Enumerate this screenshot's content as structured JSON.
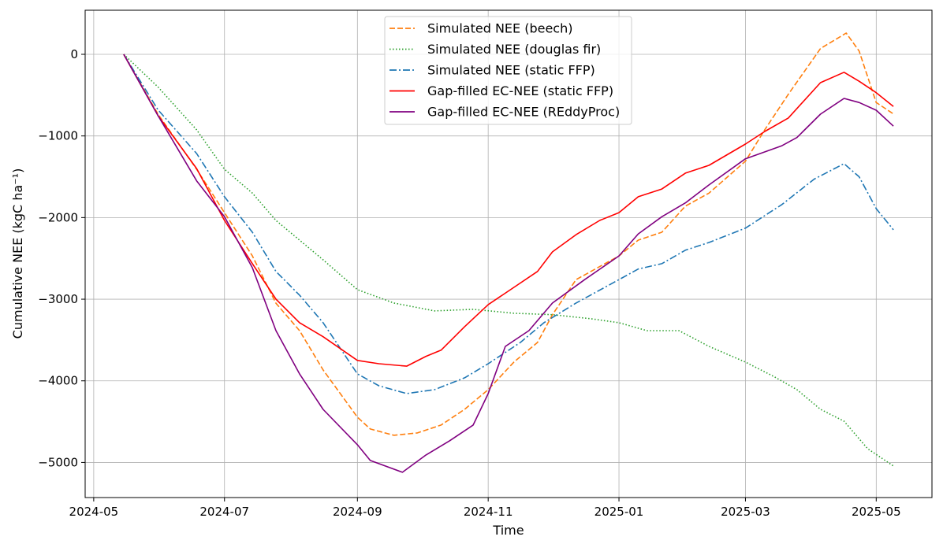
{
  "chart_data": {
    "type": "line",
    "title": "",
    "xlabel": "Time",
    "ylabel": "Cumulative NEE (kgC ha⁻¹)",
    "xlim": [
      "2024-04-27",
      "2025-05-27"
    ],
    "ylim": [
      -5430,
      540
    ],
    "grid": true,
    "legend_position": "top-center",
    "x_ticks": [
      "2024-05",
      "2024-07",
      "2024-09",
      "2024-11",
      "2025-01",
      "2025-03",
      "2025-05"
    ],
    "y_ticks": [
      0,
      -1000,
      -2000,
      -3000,
      -4000,
      -5000
    ],
    "y_tick_labels": [
      "0",
      "−1000",
      "−2000",
      "−3000",
      "−4000",
      "−5000"
    ],
    "series": [
      {
        "name": "Simulated NEE (beech)",
        "color": "#ff7f0e",
        "style": "dashed",
        "points": [
          [
            "2024-05-15",
            0
          ],
          [
            "2024-05-31",
            -733
          ],
          [
            "2024-06-18",
            -1408
          ],
          [
            "2024-07-01",
            -1940
          ],
          [
            "2024-07-14",
            -2470
          ],
          [
            "2024-07-25",
            -3050
          ],
          [
            "2024-08-05",
            -3385
          ],
          [
            "2024-08-16",
            -3867
          ],
          [
            "2024-09-01",
            -4445
          ],
          [
            "2024-09-07",
            -4590
          ],
          [
            "2024-09-18",
            -4667
          ],
          [
            "2024-09-29",
            -4638
          ],
          [
            "2024-10-10",
            -4542
          ],
          [
            "2024-10-21",
            -4349
          ],
          [
            "2024-11-01",
            -4108
          ],
          [
            "2024-11-13",
            -3770
          ],
          [
            "2024-11-24",
            -3530
          ],
          [
            "2024-12-01",
            -3190
          ],
          [
            "2024-12-12",
            -2760
          ],
          [
            "2025-01-01",
            -2470
          ],
          [
            "2025-01-10",
            -2276
          ],
          [
            "2025-01-21",
            -2180
          ],
          [
            "2025-02-01",
            -1860
          ],
          [
            "2025-02-12",
            -1700
          ],
          [
            "2025-03-01",
            -1310
          ],
          [
            "2025-03-10",
            -925
          ],
          [
            "2025-03-21",
            -490
          ],
          [
            "2025-04-05",
            70
          ],
          [
            "2025-04-17",
            260
          ],
          [
            "2025-04-23",
            40
          ],
          [
            "2025-05-01",
            -590
          ],
          [
            "2025-05-09",
            -730
          ]
        ]
      },
      {
        "name": "Simulated NEE (douglas fir)",
        "color": "#2ca02c",
        "style": "dotted",
        "points": [
          [
            "2024-05-15",
            0
          ],
          [
            "2024-05-31",
            -400
          ],
          [
            "2024-06-18",
            -925
          ],
          [
            "2024-07-01",
            -1408
          ],
          [
            "2024-07-14",
            -1700
          ],
          [
            "2024-07-25",
            -2035
          ],
          [
            "2024-08-05",
            -2276
          ],
          [
            "2024-08-16",
            -2517
          ],
          [
            "2024-09-01",
            -2883
          ],
          [
            "2024-09-18",
            -3047
          ],
          [
            "2024-10-07",
            -3143
          ],
          [
            "2024-10-25",
            -3124
          ],
          [
            "2024-11-13",
            -3172
          ],
          [
            "2024-12-01",
            -3190
          ],
          [
            "2024-12-19",
            -3240
          ],
          [
            "2025-01-01",
            -3288
          ],
          [
            "2025-01-14",
            -3385
          ],
          [
            "2025-01-29",
            -3385
          ],
          [
            "2025-02-12",
            -3578
          ],
          [
            "2025-03-01",
            -3770
          ],
          [
            "2025-03-14",
            -3944
          ],
          [
            "2025-03-25",
            -4108
          ],
          [
            "2025-04-05",
            -4349
          ],
          [
            "2025-04-16",
            -4494
          ],
          [
            "2025-04-27",
            -4831
          ],
          [
            "2025-05-09",
            -5043
          ]
        ]
      },
      {
        "name": "Simulated NEE (static FFP)",
        "color": "#1f77b4",
        "style": "dashdot",
        "points": [
          [
            "2024-05-15",
            0
          ],
          [
            "2024-05-31",
            -680
          ],
          [
            "2024-06-18",
            -1215
          ],
          [
            "2024-07-01",
            -1745
          ],
          [
            "2024-07-14",
            -2180
          ],
          [
            "2024-07-25",
            -2660
          ],
          [
            "2024-08-05",
            -2950
          ],
          [
            "2024-08-16",
            -3288
          ],
          [
            "2024-09-01",
            -3915
          ],
          [
            "2024-09-11",
            -4060
          ],
          [
            "2024-09-24",
            -4156
          ],
          [
            "2024-10-07",
            -4108
          ],
          [
            "2024-10-21",
            -3963
          ],
          [
            "2024-11-01",
            -3790
          ],
          [
            "2024-11-16",
            -3530
          ],
          [
            "2024-11-27",
            -3288
          ],
          [
            "2024-12-12",
            -3047
          ],
          [
            "2025-01-01",
            -2760
          ],
          [
            "2025-01-10",
            -2630
          ],
          [
            "2025-01-21",
            -2565
          ],
          [
            "2025-02-01",
            -2400
          ],
          [
            "2025-02-12",
            -2305
          ],
          [
            "2025-03-01",
            -2130
          ],
          [
            "2025-03-18",
            -1840
          ],
          [
            "2025-04-02",
            -1530
          ],
          [
            "2025-04-16",
            -1340
          ],
          [
            "2025-04-23",
            -1500
          ],
          [
            "2025-05-01",
            -1890
          ],
          [
            "2025-05-09",
            -2150
          ]
        ]
      },
      {
        "name": "Gap-filled EC-NEE (static FFP)",
        "color": "#ff0000",
        "style": "solid",
        "points": [
          [
            "2024-05-15",
            0
          ],
          [
            "2024-05-31",
            -750
          ],
          [
            "2024-06-18",
            -1400
          ],
          [
            "2024-07-01",
            -2035
          ],
          [
            "2024-07-14",
            -2565
          ],
          [
            "2024-07-25",
            -3000
          ],
          [
            "2024-08-05",
            -3288
          ],
          [
            "2024-08-16",
            -3460
          ],
          [
            "2024-09-01",
            -3750
          ],
          [
            "2024-09-11",
            -3790
          ],
          [
            "2024-09-24",
            -3820
          ],
          [
            "2024-10-03",
            -3700
          ],
          [
            "2024-10-10",
            -3625
          ],
          [
            "2024-10-21",
            -3336
          ],
          [
            "2024-11-01",
            -3066
          ],
          [
            "2024-11-13",
            -2855
          ],
          [
            "2024-11-24",
            -2660
          ],
          [
            "2024-12-01",
            -2420
          ],
          [
            "2024-12-12",
            -2210
          ],
          [
            "2024-12-23",
            -2035
          ],
          [
            "2025-01-01",
            -1940
          ],
          [
            "2025-01-10",
            -1745
          ],
          [
            "2025-01-21",
            -1650
          ],
          [
            "2025-02-01",
            -1455
          ],
          [
            "2025-02-12",
            -1360
          ],
          [
            "2025-03-01",
            -1100
          ],
          [
            "2025-03-10",
            -945
          ],
          [
            "2025-03-21",
            -780
          ],
          [
            "2025-04-05",
            -347
          ],
          [
            "2025-04-16",
            -220
          ],
          [
            "2025-04-23",
            -330
          ],
          [
            "2025-05-01",
            -470
          ],
          [
            "2025-05-09",
            -640
          ]
        ]
      },
      {
        "name": "Gap-filled EC-NEE (REddyProc)",
        "color": "#800080",
        "style": "solid",
        "points": [
          [
            "2024-05-15",
            0
          ],
          [
            "2024-05-31",
            -750
          ],
          [
            "2024-06-18",
            -1550
          ],
          [
            "2024-07-01",
            -1990
          ],
          [
            "2024-07-14",
            -2615
          ],
          [
            "2024-07-25",
            -3385
          ],
          [
            "2024-08-05",
            -3915
          ],
          [
            "2024-08-16",
            -4350
          ],
          [
            "2024-09-01",
            -4783
          ],
          [
            "2024-09-07",
            -4976
          ],
          [
            "2024-09-22",
            -5120
          ],
          [
            "2024-10-03",
            -4908
          ],
          [
            "2024-10-14",
            -4735
          ],
          [
            "2024-10-25",
            -4542
          ],
          [
            "2024-11-01",
            -4156
          ],
          [
            "2024-11-09",
            -3578
          ],
          [
            "2024-11-20",
            -3385
          ],
          [
            "2024-12-01",
            -3047
          ],
          [
            "2024-12-16",
            -2760
          ],
          [
            "2025-01-01",
            -2470
          ],
          [
            "2025-01-10",
            -2200
          ],
          [
            "2025-01-21",
            -1990
          ],
          [
            "2025-02-01",
            -1820
          ],
          [
            "2025-02-12",
            -1600
          ],
          [
            "2025-03-01",
            -1280
          ],
          [
            "2025-03-18",
            -1120
          ],
          [
            "2025-03-25",
            -1020
          ],
          [
            "2025-04-05",
            -733
          ],
          [
            "2025-04-16",
            -540
          ],
          [
            "2025-04-23",
            -590
          ],
          [
            "2025-05-01",
            -685
          ],
          [
            "2025-05-09",
            -880
          ]
        ]
      }
    ]
  }
}
